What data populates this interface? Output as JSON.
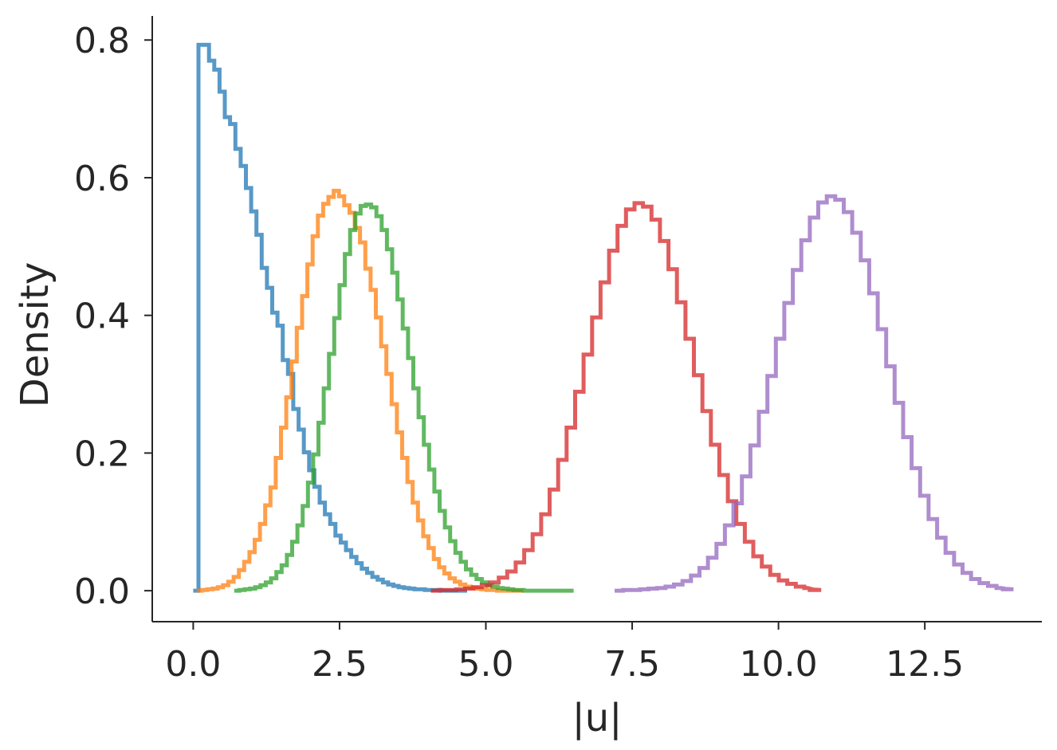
{
  "chart_data": {
    "type": "line",
    "step": true,
    "title": "",
    "xlabel": "|u|",
    "ylabel": "Density",
    "xlim": [
      -0.7,
      14.5
    ],
    "ylim": [
      -0.045,
      0.835
    ],
    "xticks": [
      0.0,
      2.5,
      5.0,
      7.5,
      10.0,
      12.5
    ],
    "xtick_labels": [
      "0.0",
      "2.5",
      "5.0",
      "7.5",
      "10.0",
      "12.5"
    ],
    "yticks": [
      0.0,
      0.2,
      0.4,
      0.6,
      0.8
    ],
    "ytick_labels": [
      "0.0",
      "0.2",
      "0.4",
      "0.6",
      "0.8"
    ],
    "grid": false,
    "legend": "none",
    "series": [
      {
        "color": "#1f77b4",
        "x_start": 0.0,
        "x_end": 4.7,
        "bin_width": 0.09,
        "values": [
          0.0,
          0.793,
          0.793,
          0.77,
          0.757,
          0.725,
          0.688,
          0.678,
          0.642,
          0.617,
          0.585,
          0.551,
          0.517,
          0.469,
          0.44,
          0.404,
          0.385,
          0.335,
          0.315,
          0.264,
          0.234,
          0.201,
          0.175,
          0.151,
          0.128,
          0.111,
          0.097,
          0.08,
          0.07,
          0.059,
          0.049,
          0.04,
          0.032,
          0.026,
          0.02,
          0.016,
          0.012,
          0.009,
          0.007,
          0.005,
          0.004,
          0.003,
          0.002,
          0.002,
          0.001,
          0.001,
          0.001,
          0.0,
          0.0,
          0.0,
          0.0,
          0.0
        ]
      },
      {
        "color": "#ff7f0e",
        "x_start": 0.06,
        "x_end": 5.64,
        "bin_width": 0.09,
        "values": [
          0.0,
          0.001,
          0.002,
          0.003,
          0.005,
          0.008,
          0.013,
          0.02,
          0.03,
          0.042,
          0.056,
          0.074,
          0.097,
          0.124,
          0.15,
          0.193,
          0.237,
          0.281,
          0.333,
          0.382,
          0.428,
          0.474,
          0.515,
          0.545,
          0.562,
          0.572,
          0.581,
          0.573,
          0.56,
          0.549,
          0.527,
          0.506,
          0.468,
          0.437,
          0.397,
          0.355,
          0.315,
          0.271,
          0.23,
          0.193,
          0.158,
          0.128,
          0.102,
          0.079,
          0.062,
          0.046,
          0.034,
          0.025,
          0.018,
          0.013,
          0.009,
          0.006,
          0.004,
          0.003,
          0.002,
          0.001,
          0.001,
          0.0,
          0.0,
          0.0,
          0.0,
          0.0,
          0.0
        ]
      },
      {
        "color": "#2ca02c",
        "x_start": 0.7,
        "x_end": 6.5,
        "bin_width": 0.09,
        "values": [
          0.0,
          0.001,
          0.002,
          0.003,
          0.005,
          0.008,
          0.012,
          0.018,
          0.027,
          0.037,
          0.052,
          0.071,
          0.095,
          0.123,
          0.157,
          0.198,
          0.244,
          0.294,
          0.344,
          0.396,
          0.444,
          0.489,
          0.524,
          0.548,
          0.559,
          0.561,
          0.557,
          0.544,
          0.524,
          0.496,
          0.462,
          0.423,
          0.381,
          0.338,
          0.294,
          0.252,
          0.212,
          0.176,
          0.144,
          0.116,
          0.092,
          0.072,
          0.055,
          0.042,
          0.031,
          0.023,
          0.017,
          0.012,
          0.008,
          0.006,
          0.004,
          0.003,
          0.002,
          0.001,
          0.001,
          0.0,
          0.0,
          0.0,
          0.0,
          0.0,
          0.0,
          0.0,
          0.0,
          0.0,
          0.0
        ]
      },
      {
        "color": "#d62728",
        "x_start": 4.06,
        "x_end": 10.5,
        "bin_width": 0.145,
        "values": [
          0.0,
          0.001,
          0.001,
          0.002,
          0.003,
          0.005,
          0.008,
          0.012,
          0.019,
          0.028,
          0.041,
          0.059,
          0.082,
          0.111,
          0.147,
          0.19,
          0.237,
          0.289,
          0.343,
          0.397,
          0.448,
          0.494,
          0.53,
          0.554,
          0.563,
          0.558,
          0.539,
          0.508,
          0.467,
          0.419,
          0.366,
          0.313,
          0.261,
          0.212,
          0.168,
          0.13,
          0.097,
          0.071,
          0.05,
          0.035,
          0.023,
          0.015,
          0.01,
          0.006,
          0.004,
          0.002,
          0.001
        ]
      },
      {
        "color": "#9467bd",
        "x_start": 7.2,
        "x_end": 13.8,
        "bin_width": 0.145,
        "values": [
          0.0,
          0.001,
          0.001,
          0.002,
          0.003,
          0.004,
          0.006,
          0.009,
          0.014,
          0.022,
          0.033,
          0.048,
          0.068,
          0.095,
          0.127,
          0.166,
          0.211,
          0.26,
          0.312,
          0.366,
          0.418,
          0.466,
          0.509,
          0.542,
          0.564,
          0.573,
          0.568,
          0.55,
          0.52,
          0.48,
          0.432,
          0.38,
          0.326,
          0.273,
          0.223,
          0.178,
          0.138,
          0.104,
          0.077,
          0.055,
          0.038,
          0.026,
          0.017,
          0.011,
          0.007,
          0.004,
          0.003,
          0.002
        ]
      }
    ]
  }
}
